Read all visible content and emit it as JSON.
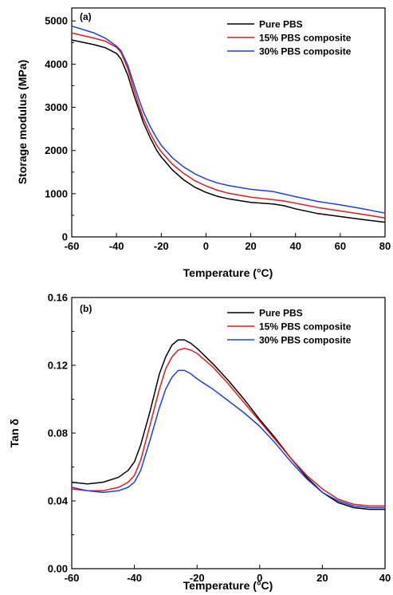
{
  "chart_data": [
    {
      "panel": "(a)",
      "type": "line",
      "title": "",
      "xlabel": "Temperature (°C)",
      "ylabel": "Storage modulus (MPa)",
      "xlim": [
        -60,
        80
      ],
      "ylim": [
        0,
        5300
      ],
      "xticks": [
        -60,
        -40,
        -20,
        0,
        20,
        40,
        60,
        80
      ],
      "yticks": [
        0,
        1000,
        2000,
        3000,
        4000,
        5000
      ],
      "x": [
        -60,
        -50,
        -45,
        -40,
        -38,
        -35,
        -32,
        -30,
        -28,
        -25,
        -22,
        -20,
        -15,
        -10,
        -5,
        0,
        5,
        10,
        20,
        30,
        35,
        40,
        50,
        60,
        70,
        80
      ],
      "series": [
        {
          "name": "Pure PBS",
          "color": "#000000",
          "values": [
            4560,
            4450,
            4380,
            4250,
            4120,
            3750,
            3250,
            2950,
            2650,
            2300,
            2000,
            1850,
            1550,
            1320,
            1150,
            1030,
            940,
            880,
            800,
            760,
            720,
            650,
            540,
            470,
            400,
            340
          ]
        },
        {
          "name": "15% PBS composite",
          "color": "#e31a1c",
          "values": [
            4720,
            4600,
            4530,
            4390,
            4270,
            3900,
            3380,
            3050,
            2750,
            2400,
            2120,
            1970,
            1680,
            1470,
            1300,
            1180,
            1080,
            1010,
            920,
            860,
            830,
            780,
            680,
            600,
            520,
            440
          ]
        },
        {
          "name": "30% PBS composite",
          "color": "#1f3fe0",
          "values": [
            4880,
            4720,
            4600,
            4420,
            4310,
            3980,
            3500,
            3190,
            2900,
            2560,
            2280,
            2120,
            1830,
            1620,
            1460,
            1340,
            1250,
            1190,
            1100,
            1050,
            990,
            930,
            820,
            740,
            650,
            550
          ]
        }
      ],
      "legend": "top-right"
    },
    {
      "panel": "(b)",
      "type": "line",
      "title": "",
      "xlabel": "Temperature (°C)",
      "ylabel": "Tan δ",
      "xlim": [
        -60,
        40
      ],
      "ylim": [
        0,
        0.16
      ],
      "xticks": [
        -60,
        -40,
        -20,
        0,
        20,
        40
      ],
      "yticks": [
        "0.00",
        "0.04",
        "0.08",
        "0.12",
        "0.16"
      ],
      "x": [
        -60,
        -55,
        -50,
        -45,
        -42,
        -40,
        -38,
        -35,
        -32,
        -30,
        -28,
        -26,
        -24,
        -22,
        -20,
        -15,
        -10,
        -5,
        0,
        5,
        10,
        15,
        20,
        25,
        30,
        35,
        40
      ],
      "series": [
        {
          "name": "Pure PBS",
          "color": "#000000",
          "values": [
            0.051,
            0.05,
            0.051,
            0.054,
            0.058,
            0.063,
            0.073,
            0.093,
            0.115,
            0.125,
            0.132,
            0.135,
            0.135,
            0.133,
            0.13,
            0.121,
            0.111,
            0.1,
            0.088,
            0.077,
            0.065,
            0.054,
            0.045,
            0.039,
            0.036,
            0.035,
            0.035
          ]
        },
        {
          "name": "15% PBS composite",
          "color": "#e31a1c",
          "values": [
            0.047,
            0.046,
            0.046,
            0.048,
            0.051,
            0.055,
            0.064,
            0.085,
            0.106,
            0.118,
            0.125,
            0.129,
            0.13,
            0.129,
            0.127,
            0.119,
            0.109,
            0.098,
            0.087,
            0.076,
            0.065,
            0.055,
            0.047,
            0.041,
            0.038,
            0.037,
            0.037
          ]
        },
        {
          "name": "30% PBS composite",
          "color": "#1f3fe0",
          "values": [
            0.048,
            0.046,
            0.045,
            0.046,
            0.048,
            0.051,
            0.058,
            0.076,
            0.095,
            0.106,
            0.113,
            0.117,
            0.117,
            0.115,
            0.112,
            0.106,
            0.099,
            0.092,
            0.084,
            0.074,
            0.063,
            0.053,
            0.045,
            0.04,
            0.037,
            0.036,
            0.036
          ]
        }
      ],
      "legend": "top-right"
    }
  ]
}
